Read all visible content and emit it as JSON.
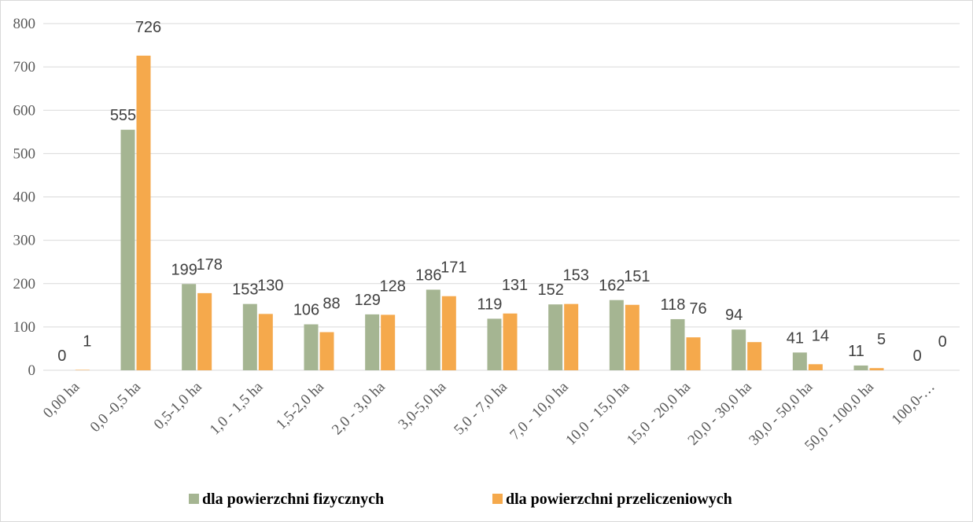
{
  "chart_data": {
    "type": "bar",
    "categories": [
      "0,00 ha",
      "0,0 -0,5 ha",
      "0,5-1,0 ha",
      "1,0 - 1,5 ha",
      "1,5-2,0 ha",
      "2,0 - 3,0 ha",
      "3,0-5,0 ha",
      "5,0 - 7,0 ha",
      "7,0 - 10,0 ha",
      "10,0 - 15,0 ha",
      "15,0 - 20,0 ha",
      "20,0 - 30,0 ha",
      "30,0 - 50,0 ha",
      "50,0 - 100,0 ha",
      "100,0-…"
    ],
    "series": [
      {
        "name": "dla powierzchni fizycznych",
        "color": "#a5b592",
        "values": [
          0,
          555,
          199,
          153,
          106,
          129,
          186,
          119,
          152,
          162,
          118,
          94,
          41,
          11,
          0
        ]
      },
      {
        "name": "dla powierzchni przeliczeniowych",
        "color": "#f5a94c",
        "values": [
          1,
          726,
          178,
          130,
          88,
          128,
          171,
          131,
          153,
          151,
          76,
          65,
          14,
          5,
          0
        ],
        "value_labels": [
          "1",
          "726",
          "178",
          "130",
          "88",
          "128",
          "171",
          "131",
          "153",
          "151",
          "76",
          null,
          "14",
          "5",
          "0"
        ]
      }
    ],
    "ylim": [
      0,
      800
    ],
    "yticks": [
      0,
      100,
      200,
      300,
      400,
      500,
      600,
      700,
      800
    ],
    "grid": true
  }
}
